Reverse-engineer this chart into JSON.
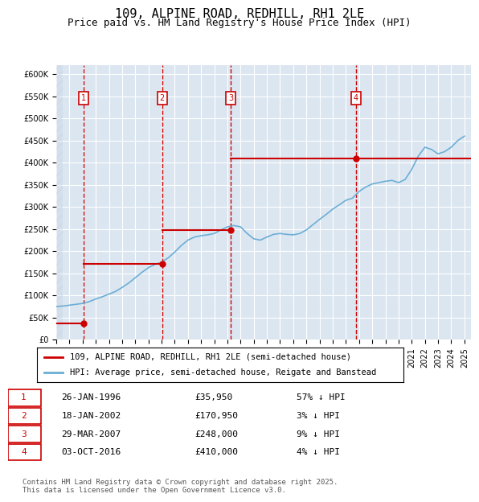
{
  "title": "109, ALPINE ROAD, REDHILL, RH1 2LE",
  "subtitle": "Price paid vs. HM Land Registry's House Price Index (HPI)",
  "ylabel": "",
  "ylim": [
    0,
    620000
  ],
  "yticks": [
    0,
    50000,
    100000,
    150000,
    200000,
    250000,
    300000,
    350000,
    400000,
    450000,
    500000,
    550000,
    600000
  ],
  "ytick_labels": [
    "£0",
    "£50K",
    "£100K",
    "£150K",
    "£200K",
    "£250K",
    "£300K",
    "£350K",
    "£400K",
    "£450K",
    "£500K",
    "£550K",
    "£600K"
  ],
  "background_color": "#ffffff",
  "plot_bg_color": "#dce6f1",
  "hatch_color": "#c0cfe0",
  "grid_color": "#ffffff",
  "sale_dates_num": [
    1996.07,
    2002.05,
    2007.24,
    2016.75
  ],
  "sale_prices": [
    35950,
    170950,
    248000,
    410000
  ],
  "sale_labels": [
    "1",
    "2",
    "3",
    "4"
  ],
  "vline_color": "#cc0000",
  "vline_style": "--",
  "sale_line_color": "#cc0000",
  "hpi_line_color": "#6baed6",
  "legend_label_sale": "109, ALPINE ROAD, REDHILL, RH1 2LE (semi-detached house)",
  "legend_label_hpi": "HPI: Average price, semi-detached house, Reigate and Banstead",
  "table_data": [
    [
      "1",
      "26-JAN-1996",
      "£35,950",
      "57% ↓ HPI"
    ],
    [
      "2",
      "18-JAN-2002",
      "£170,950",
      "3% ↓ HPI"
    ],
    [
      "3",
      "29-MAR-2007",
      "£248,000",
      "9% ↓ HPI"
    ],
    [
      "4",
      "03-OCT-2016",
      "£410,000",
      "4% ↓ HPI"
    ]
  ],
  "footer": "Contains HM Land Registry data © Crown copyright and database right 2025.\nThis data is licensed under the Open Government Licence v3.0.",
  "title_fontsize": 11,
  "subtitle_fontsize": 9,
  "tick_fontsize": 8,
  "hpi_data": {
    "dates": [
      1994.0,
      1994.5,
      1995.0,
      1995.5,
      1996.0,
      1996.5,
      1997.0,
      1997.5,
      1998.0,
      1998.5,
      1999.0,
      1999.5,
      2000.0,
      2000.5,
      2001.0,
      2001.5,
      2002.0,
      2002.5,
      2003.0,
      2003.5,
      2004.0,
      2004.5,
      2005.0,
      2005.5,
      2006.0,
      2006.5,
      2007.0,
      2007.5,
      2008.0,
      2008.5,
      2009.0,
      2009.5,
      2010.0,
      2010.5,
      2011.0,
      2011.5,
      2012.0,
      2012.5,
      2013.0,
      2013.5,
      2014.0,
      2014.5,
      2015.0,
      2015.5,
      2016.0,
      2016.5,
      2017.0,
      2017.5,
      2018.0,
      2018.5,
      2019.0,
      2019.5,
      2020.0,
      2020.5,
      2021.0,
      2021.5,
      2022.0,
      2022.5,
      2023.0,
      2023.5,
      2024.0,
      2024.5,
      2025.0
    ],
    "prices": [
      75000,
      76000,
      78000,
      80000,
      82000,
      86000,
      92000,
      97000,
      103000,
      109000,
      118000,
      128000,
      140000,
      152000,
      163000,
      170000,
      175000,
      185000,
      198000,
      213000,
      225000,
      232000,
      235000,
      237000,
      240000,
      248000,
      255000,
      258000,
      255000,
      240000,
      228000,
      225000,
      232000,
      238000,
      240000,
      238000,
      237000,
      240000,
      248000,
      260000,
      272000,
      283000,
      295000,
      305000,
      315000,
      320000,
      335000,
      345000,
      352000,
      355000,
      358000,
      360000,
      355000,
      362000,
      385000,
      415000,
      435000,
      430000,
      420000,
      425000,
      435000,
      450000,
      460000
    ]
  }
}
